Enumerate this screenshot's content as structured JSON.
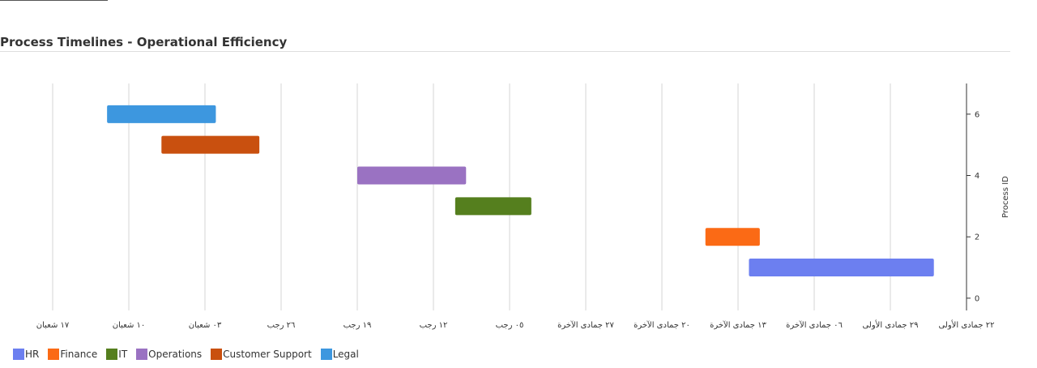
{
  "title": "Process Timelines - Operational Efficiency",
  "colors": {
    "HR": "#6c7ff0",
    "Finance": "#fb6a15",
    "IT": "#557f1e",
    "Operations": "#9a72c2",
    "Customer Support": "#c9500f",
    "Legal": "#3d97df"
  },
  "chart_data": {
    "type": "gantt",
    "title": "Process Timelines - Operational Efficiency",
    "ylabel": "Process ID",
    "x_axis_reversed": true,
    "x_tick_labels": [
      "٢٢ جمادى الأولى",
      "٢٩ جمادى الأولى",
      "٠٦ جمادى الآخرة",
      "١٣ جمادى الآخرة",
      "٢٠ جمادى الآخرة",
      "٢٧ جمادى الآخرة",
      "٠٥ رجب",
      "١٢ رجب",
      "١٩ رجب",
      "٢٦ رجب",
      "٠٣ شعبان",
      "١٠ شعبان",
      "١٧ شعبان"
    ],
    "x_tick_step_days": 7,
    "y_ticks": [
      0,
      2,
      4,
      6
    ],
    "ylim": [
      -0.4,
      7
    ],
    "series": [
      {
        "name": "HR",
        "process_id": 1,
        "start_days": 3,
        "end_days": 20
      },
      {
        "name": "Finance",
        "process_id": 2,
        "start_days": 19,
        "end_days": 24
      },
      {
        "name": "IT",
        "process_id": 3,
        "start_days": 40,
        "end_days": 47
      },
      {
        "name": "Operations",
        "process_id": 4,
        "start_days": 46,
        "end_days": 56
      },
      {
        "name": "Customer Support",
        "process_id": 5,
        "start_days": 65,
        "end_days": 74
      },
      {
        "name": "Legal",
        "process_id": 6,
        "start_days": 69,
        "end_days": 79
      }
    ]
  }
}
